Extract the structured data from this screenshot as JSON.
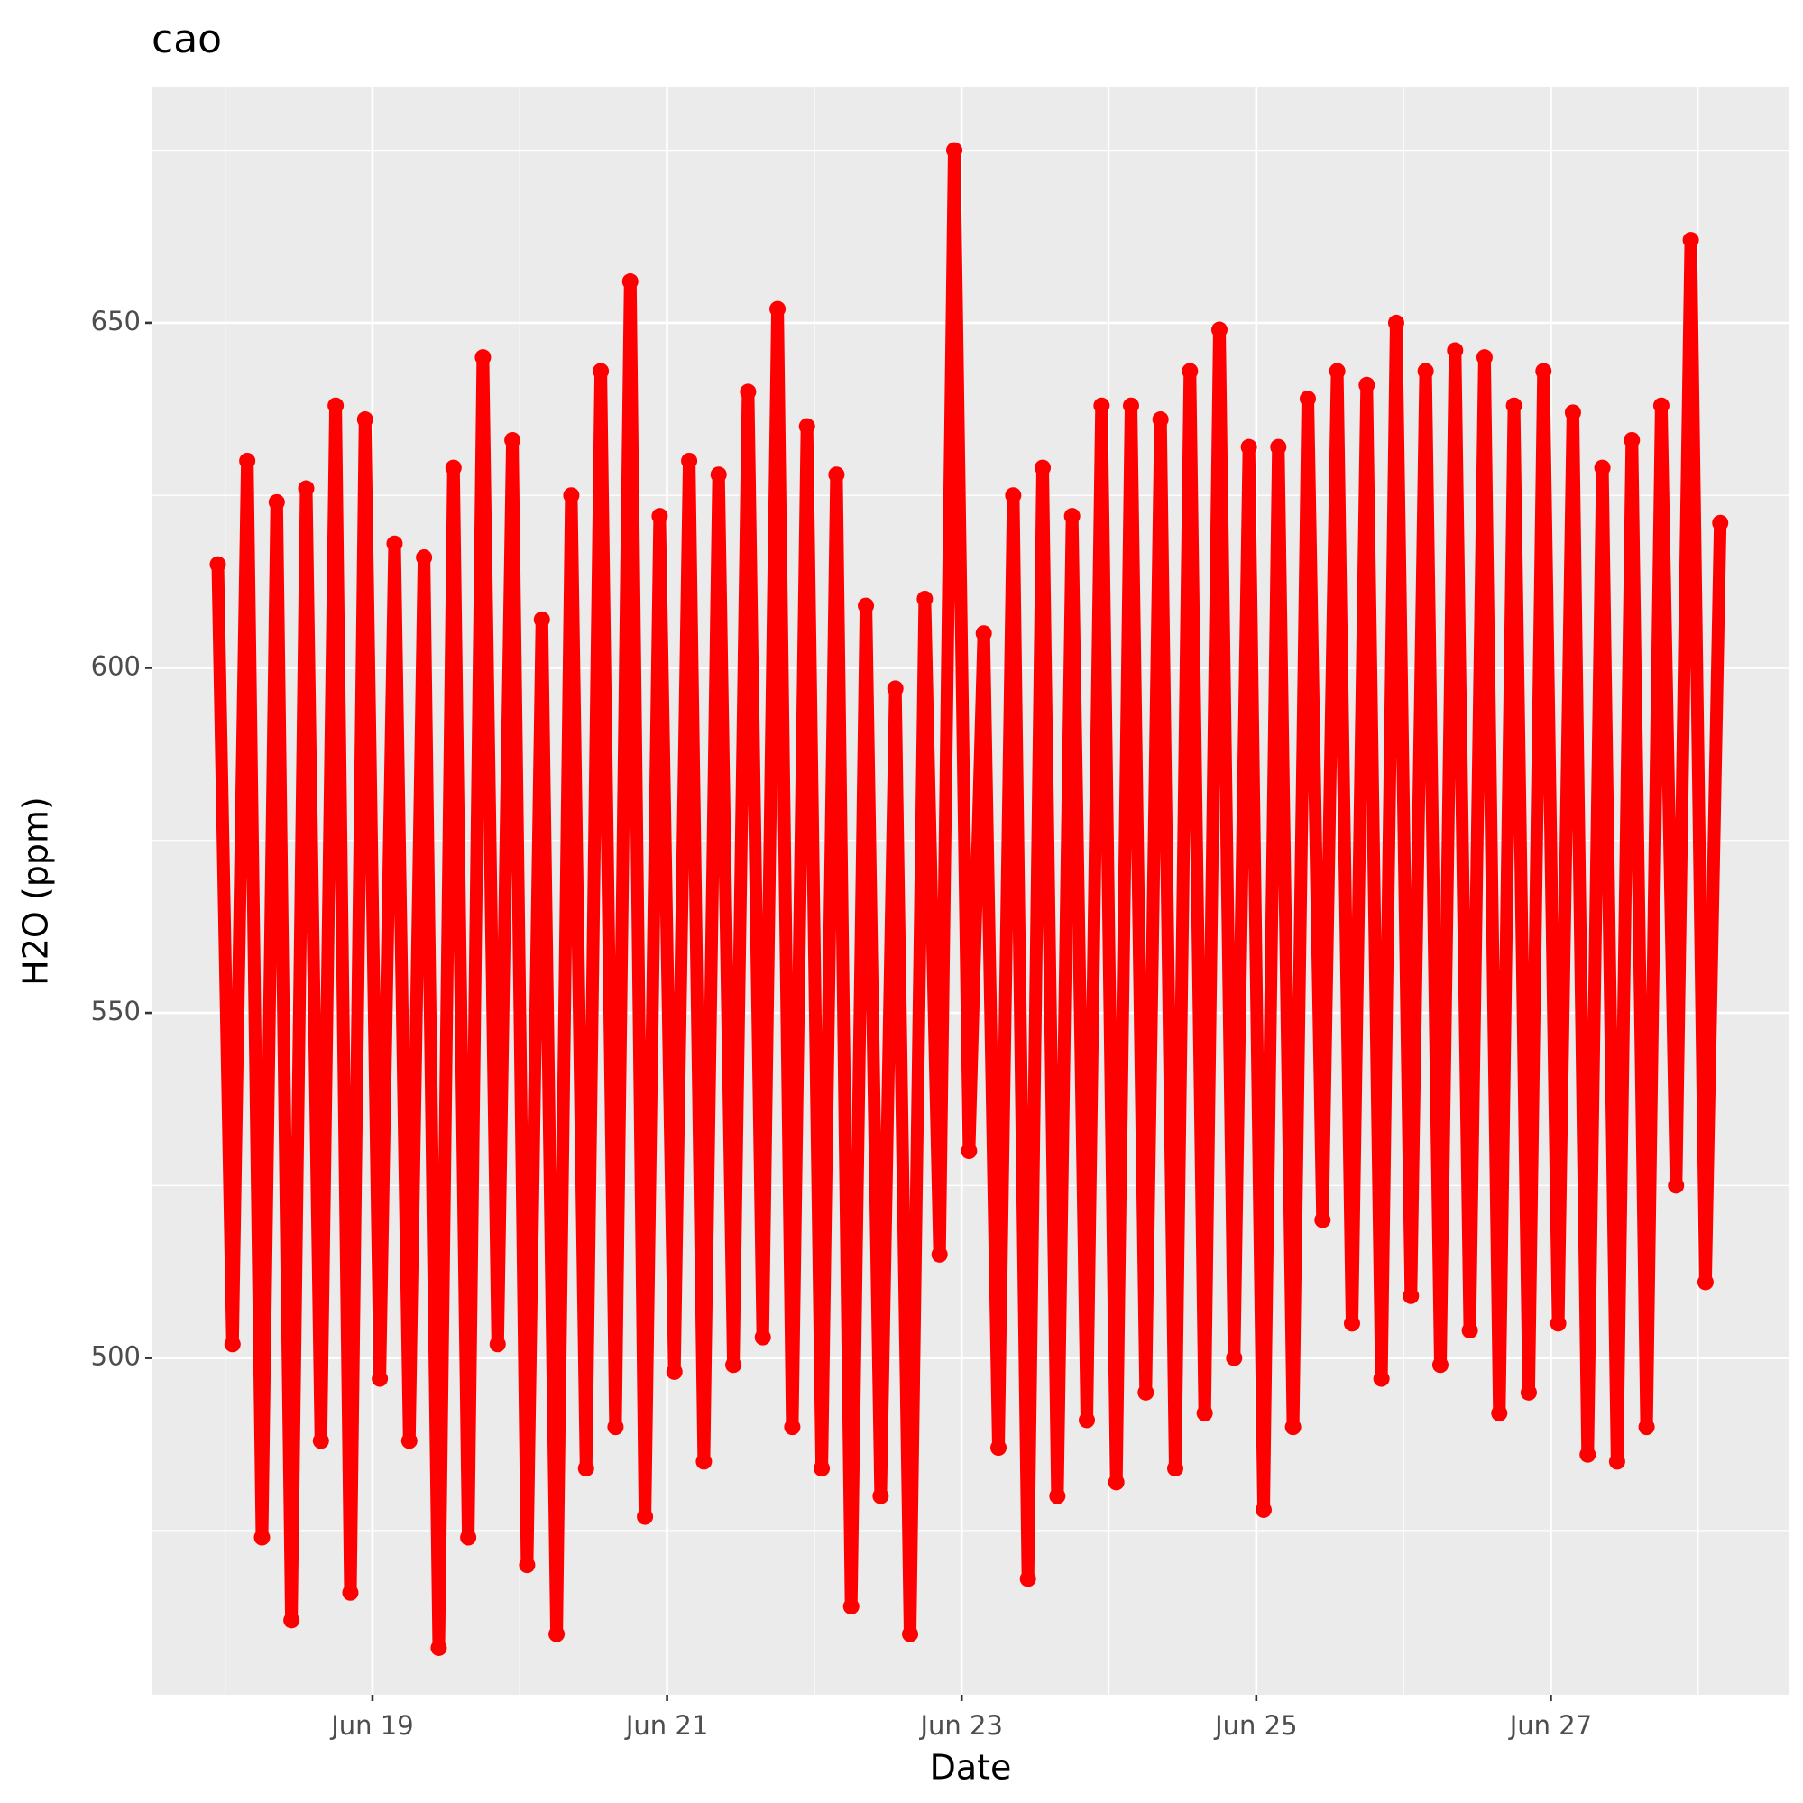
{
  "chart_data": {
    "type": "line",
    "title": "cao",
    "x_label": "Date",
    "y_label": "H2O (ppm)",
    "x": [
      17.95,
      18.05,
      18.15,
      18.25,
      18.35,
      18.45,
      18.55,
      18.65,
      18.75,
      18.85,
      18.95,
      19.05,
      19.15,
      19.25,
      19.35,
      19.45,
      19.55,
      19.65,
      19.75,
      19.85,
      19.95,
      20.05,
      20.15,
      20.25,
      20.35,
      20.45,
      20.55,
      20.65,
      20.75,
      20.85,
      20.95,
      21.05,
      21.15,
      21.25,
      21.35,
      21.45,
      21.55,
      21.65,
      21.75,
      21.85,
      21.95,
      22.05,
      22.15,
      22.25,
      22.35,
      22.45,
      22.55,
      22.65,
      22.75,
      22.85,
      22.95,
      23.05,
      23.15,
      23.25,
      23.35,
      23.45,
      23.55,
      23.65,
      23.75,
      23.85,
      23.95,
      24.05,
      24.15,
      24.25,
      24.35,
      24.45,
      24.55,
      24.65,
      24.75,
      24.85,
      24.95,
      25.05,
      25.15,
      25.25,
      25.35,
      25.45,
      25.55,
      25.65,
      25.75,
      25.85,
      25.95,
      26.05,
      26.15,
      26.25,
      26.35,
      26.45,
      26.55,
      26.65,
      26.75,
      26.85,
      26.95,
      27.05,
      27.15,
      27.25,
      27.35,
      27.45,
      27.55,
      27.65,
      27.75,
      27.85,
      27.95,
      28.05,
      28.15
    ],
    "values": [
      615,
      502,
      630,
      474,
      624,
      462,
      626,
      488,
      638,
      466,
      636,
      497,
      618,
      488,
      616,
      458,
      629,
      474,
      645,
      502,
      633,
      470,
      607,
      460,
      625,
      484,
      643,
      490,
      656,
      477,
      622,
      498,
      630,
      485,
      628,
      499,
      640,
      503,
      652,
      490,
      635,
      484,
      628,
      464,
      609,
      480,
      597,
      460,
      610,
      515,
      675,
      530,
      605,
      487,
      625,
      468,
      629,
      480,
      622,
      491,
      638,
      482,
      638,
      495,
      636,
      484,
      643,
      492,
      649,
      500,
      632,
      478,
      632,
      490,
      639,
      520,
      643,
      505,
      641,
      497,
      650,
      509,
      643,
      499,
      646,
      504,
      645,
      492,
      638,
      495,
      643,
      505,
      637,
      486,
      629,
      485,
      633,
      490,
      638,
      525,
      662,
      511,
      621
    ],
    "color": "#ff0000",
    "xlim": [
      17.5,
      28.62
    ],
    "ylim": [
      451.2,
      684.1
    ],
    "xticks": [
      {
        "value": 19,
        "label": "Jun 19"
      },
      {
        "value": 21,
        "label": "Jun 21"
      },
      {
        "value": 23,
        "label": "Jun 23"
      },
      {
        "value": 25,
        "label": "Jun 25"
      },
      {
        "value": 27,
        "label": "Jun 27"
      }
    ],
    "yticks": [
      500,
      550,
      600,
      650
    ],
    "grid": true
  }
}
